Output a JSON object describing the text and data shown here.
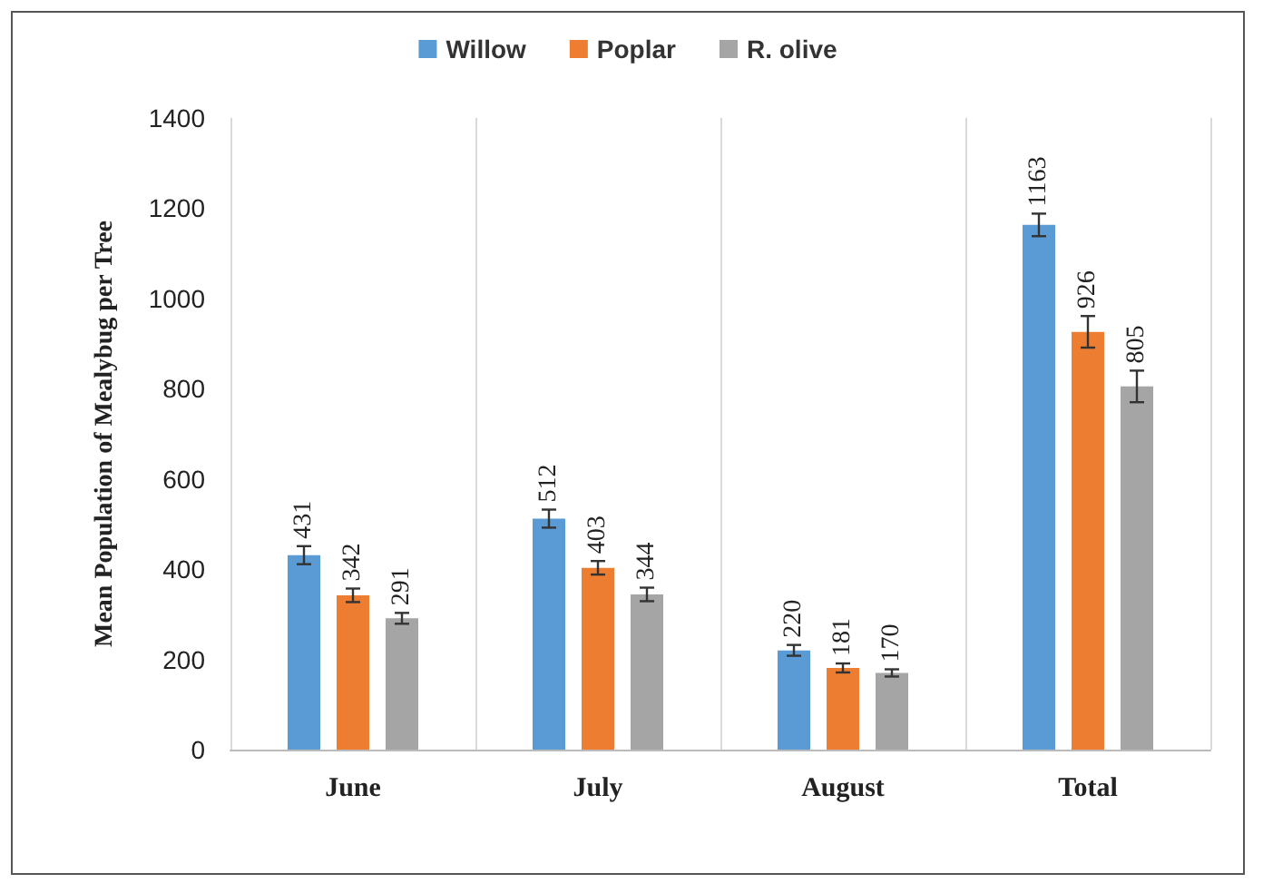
{
  "chart_data": {
    "type": "bar",
    "ylabel": "Mean Population of Mealybug per Tree",
    "categories": [
      "June",
      "July",
      "August",
      "Total"
    ],
    "series": [
      {
        "name": "Willow",
        "color": "#5b9bd5",
        "values": [
          431,
          512,
          220,
          1163
        ],
        "errors": [
          20,
          20,
          12,
          25
        ]
      },
      {
        "name": "Poplar",
        "color": "#ed7d31",
        "values": [
          342,
          403,
          181,
          926
        ],
        "errors": [
          15,
          15,
          10,
          35
        ]
      },
      {
        "name": "R. olive",
        "color": "#a5a5a5",
        "values": [
          291,
          344,
          170,
          805
        ],
        "errors": [
          12,
          15,
          8,
          35
        ]
      }
    ],
    "ylim": [
      0,
      1400
    ],
    "yticks": [
      0,
      200,
      400,
      600,
      800,
      1000,
      1200,
      1400
    ],
    "grid": "x",
    "legend": "top",
    "data_labels": true
  }
}
